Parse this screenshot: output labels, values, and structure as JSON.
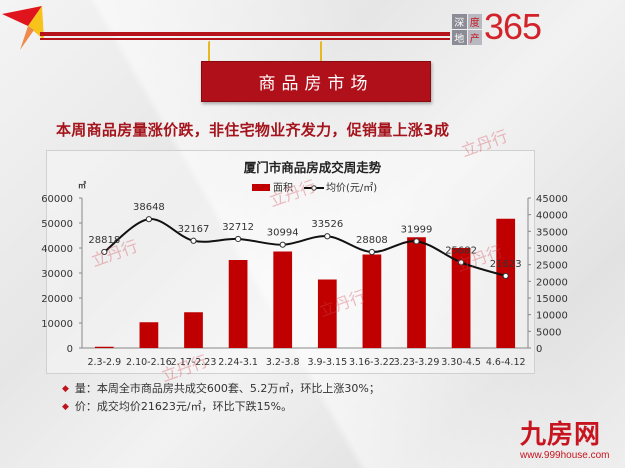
{
  "header": {
    "logo_small_chars": [
      "深",
      "度",
      "地",
      "产"
    ],
    "logo_number": "365",
    "section_sign": "商品房市场"
  },
  "headline": "本周商品房量涨价跌，非住宅物业齐发力，促销量上涨3成",
  "watermark": "立丹行",
  "chart": {
    "title": "厦门市商品房成交周走势",
    "unit_left": "㎡",
    "legend": {
      "bar": "面积",
      "line": "均价(元/㎡)"
    }
  },
  "chart_data": {
    "type": "bar",
    "title": "厦门市商品房成交周走势",
    "xlabel": "",
    "ylabel": "㎡",
    "ylabel_right": "均价(元/㎡)",
    "ylim": [
      0,
      60000
    ],
    "ylim_right": [
      0,
      45000
    ],
    "yticks": [
      0,
      10000,
      20000,
      30000,
      40000,
      50000,
      60000
    ],
    "yticks_right": [
      0,
      5000,
      10000,
      15000,
      20000,
      25000,
      30000,
      35000,
      40000,
      45000
    ],
    "grid": false,
    "legend_position": "top",
    "categories": [
      "2.3-2.9",
      "2.10-2.16",
      "2.17-2.23",
      "2.24-3.1",
      "3.2-3.8",
      "3.9-3.15",
      "3.16-3.22",
      "3.23-3.29",
      "3.30-4.5",
      "4.6-4.12"
    ],
    "series": [
      {
        "name": "面积",
        "type": "bar",
        "axis": "left",
        "color": "#c00000",
        "values": [
          500,
          10300,
          14300,
          35200,
          38600,
          27400,
          37400,
          44300,
          40000,
          51700
        ]
      },
      {
        "name": "均价(元/㎡)",
        "type": "line",
        "axis": "right",
        "color": "#000000",
        "values": [
          28818,
          38648,
          32167,
          32712,
          30994,
          33526,
          28808,
          31999,
          25682,
          21623
        ],
        "labels": [
          "28818",
          "38648",
          "32167",
          "32712",
          "30994",
          "33526",
          "28808",
          "31999",
          "25682",
          "21623"
        ]
      }
    ]
  },
  "bullets": [
    {
      "text": "量：本周全市商品房共成交600套、5.2万㎡，环比上涨30%；"
    },
    {
      "text": "价：成交均价21623元/㎡，环比下跌15%。"
    }
  ],
  "footer_brand": {
    "name": "九房网",
    "url": "www.999house.com"
  }
}
